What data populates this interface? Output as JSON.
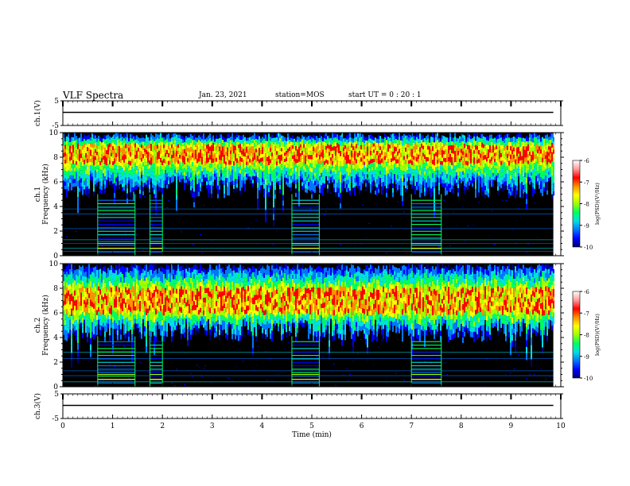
{
  "header": {
    "title": "VLF Spectra",
    "date": "Jan. 23, 2021",
    "station": "station=MOS",
    "start_ut": "start UT =  0 : 20 : 1"
  },
  "colors": {
    "spectrum_scale": [
      "#000000",
      "#00007a",
      "#0000ff",
      "#0078ff",
      "#00e0e0",
      "#00ff60",
      "#a0ff00",
      "#ffff00",
      "#ff9000",
      "#ff0000",
      "#ff9a9a",
      "#ffffff"
    ]
  },
  "chart_data": [
    {
      "type": "line",
      "name_label": "ch.1(V)",
      "ylabel": "ch.1(V)",
      "ylim": [
        -5,
        5
      ],
      "yticks": [
        "5",
        "-5"
      ],
      "xlim": [
        0,
        10
      ],
      "series": [
        {
          "x": [
            0,
            9.85
          ],
          "y": [
            0,
            0
          ]
        }
      ]
    },
    {
      "type": "heatmap",
      "name_label": "ch.1",
      "ylabel": "Frequency (kHz)",
      "ylabel_ch": "ch.1",
      "ylim": [
        0,
        10
      ],
      "yticks": [
        "0",
        "2",
        "4",
        "6",
        "8",
        "10"
      ],
      "xlim": [
        0,
        10
      ],
      "data_end_min": 9.85,
      "emission_band_khz": [
        5,
        9.5
      ],
      "peak_band_khz": [
        7.5,
        9
      ],
      "colorbar": {
        "label": "log(PSD)(V²/Hz)",
        "ticks": [
          "-6",
          "-7",
          "-8",
          "-9",
          "-10"
        ],
        "range": [
          -10,
          -6
        ]
      },
      "noise_segments_min": [
        [
          0.7,
          1.45
        ],
        [
          1.75,
          2.0
        ],
        [
          4.6,
          5.15
        ],
        [
          7.0,
          7.6
        ]
      ]
    },
    {
      "type": "heatmap",
      "name_label": "ch.2",
      "ylabel": "Frequency (kHz)",
      "ylabel_ch": "ch.2",
      "ylim": [
        0,
        10
      ],
      "yticks": [
        "0",
        "2",
        "4",
        "6",
        "8",
        "10"
      ],
      "xlim": [
        0,
        10
      ],
      "data_end_min": 9.85,
      "emission_band_khz": [
        4,
        9.5
      ],
      "peak_band_khz": [
        6,
        8
      ],
      "colorbar": {
        "label": "log(PSD)(V²/Hz)",
        "ticks": [
          "-6",
          "-7",
          "-8",
          "-9",
          "-10"
        ],
        "range": [
          -10,
          -6
        ]
      },
      "noise_segments_min": [
        [
          0.7,
          1.45
        ],
        [
          1.75,
          2.0
        ],
        [
          4.6,
          5.15
        ],
        [
          7.0,
          7.6
        ]
      ]
    },
    {
      "type": "line",
      "name_label": "ch.3(V)",
      "ylabel": "ch.3(V)",
      "ylim": [
        -5,
        5
      ],
      "yticks": [
        "5",
        "-5"
      ],
      "xlim": [
        0,
        10
      ],
      "xlabel": "Time (min)",
      "xticks": [
        "0",
        "1",
        "2",
        "3",
        "4",
        "5",
        "6",
        "7",
        "8",
        "9",
        "10"
      ],
      "series": [
        {
          "x": [
            0,
            9.85
          ],
          "y": [
            0,
            0
          ]
        }
      ]
    }
  ]
}
